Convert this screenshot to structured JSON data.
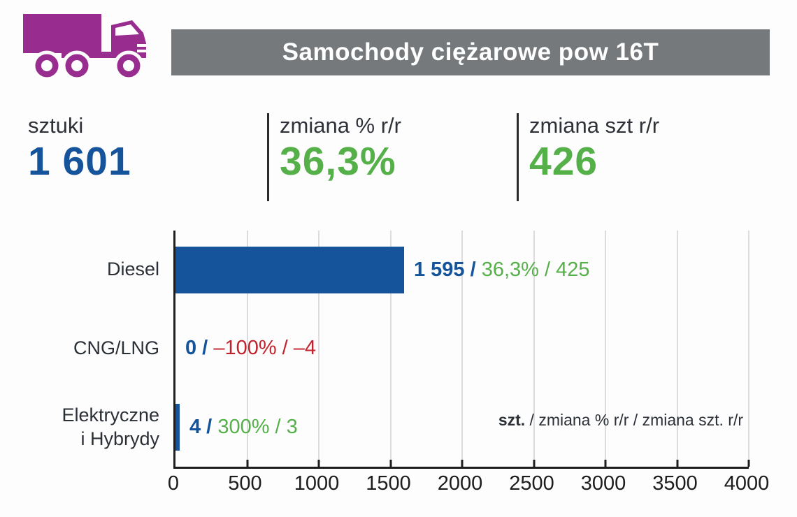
{
  "header": {
    "title": "Samochody ciężarowe pow 16T",
    "banner_color": "#75797c",
    "icon": "truck-icon",
    "icon_color": "#982d8f"
  },
  "stats": [
    {
      "label": "sztuki",
      "value": "1 601",
      "color": "#15549b"
    },
    {
      "label": "zmiana % r/r",
      "value": "36,3%",
      "color": "#56b04a"
    },
    {
      "label": "zmiana szt r/r",
      "value": "426",
      "color": "#56b04a"
    }
  ],
  "chart_data": {
    "type": "bar",
    "orientation": "horizontal",
    "title": "",
    "xlabel": "",
    "ylabel": "",
    "xlim": [
      0,
      4000
    ],
    "x_ticks": [
      0,
      500,
      1000,
      1500,
      2000,
      2500,
      3000,
      3500,
      4000
    ],
    "grid": true,
    "bar_color": "#15549b",
    "categories": [
      "Diesel",
      "CNG/LNG",
      "Elektryczne i Hybrydy"
    ],
    "series": [
      {
        "name": "szt.",
        "values": [
          1595,
          0,
          4
        ]
      },
      {
        "name": "zmiana % r/r",
        "values": [
          36.3,
          -100,
          300
        ]
      },
      {
        "name": "zmiana szt. r/r",
        "values": [
          425,
          -4,
          3
        ]
      }
    ],
    "rows": [
      {
        "label_lines": [
          "Diesel"
        ],
        "bar_value": 1595,
        "szt_display": "1 595",
        "change_display": "36,3% / 425",
        "change_color": "#56b04a"
      },
      {
        "label_lines": [
          "CNG/LNG"
        ],
        "bar_value": 0,
        "szt_display": "0",
        "change_display": "–100% / –4",
        "change_color": "#c0232e"
      },
      {
        "label_lines": [
          "Elektryczne",
          "i Hybrydy"
        ],
        "bar_value": 4,
        "szt_display": "4",
        "change_display": "300% / 3",
        "change_color": "#56b04a"
      }
    ],
    "legend": {
      "bold": "szt.",
      "rest": " / zmiana % r/r / zmiana szt. r/r"
    },
    "legend_position": "inside-bottom-right"
  }
}
